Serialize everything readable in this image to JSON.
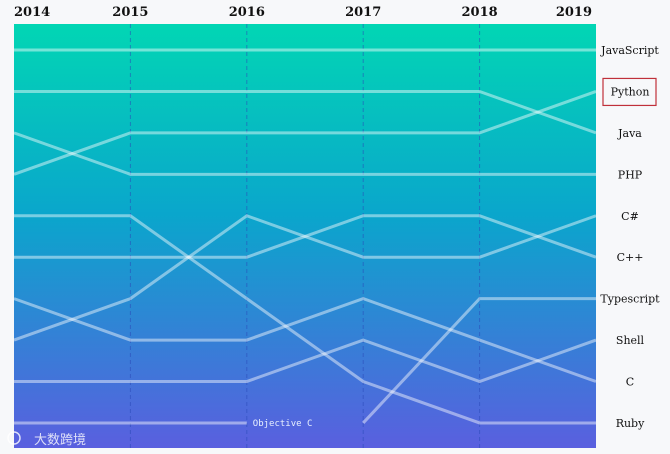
{
  "chart_data": {
    "type": "bump",
    "years": [
      "2014",
      "2015",
      "2016",
      "2017",
      "2018",
      "2019"
    ],
    "rank_range": [
      1,
      10
    ],
    "grid": "vertical dashed lines at each year",
    "series": [
      {
        "name": "JavaScript",
        "ranks": [
          1,
          1,
          1,
          1,
          1,
          1
        ]
      },
      {
        "name": "Python",
        "ranks": [
          4,
          3,
          3,
          3,
          3,
          2
        ],
        "highlighted": true
      },
      {
        "name": "Java",
        "ranks": [
          2,
          2,
          2,
          2,
          2,
          3
        ]
      },
      {
        "name": "PHP",
        "ranks": [
          3,
          4,
          4,
          4,
          4,
          4
        ]
      },
      {
        "name": "C#",
        "ranks": [
          8,
          7,
          5,
          6,
          6,
          5
        ]
      },
      {
        "name": "C++",
        "ranks": [
          6,
          6,
          6,
          5,
          5,
          6
        ]
      },
      {
        "name": "Typescript",
        "ranks": [
          null,
          null,
          null,
          10,
          7,
          7
        ]
      },
      {
        "name": "Shell",
        "ranks": [
          9,
          9,
          9,
          8,
          9,
          8
        ]
      },
      {
        "name": "C",
        "ranks": [
          7,
          8,
          8,
          7,
          8,
          9
        ]
      },
      {
        "name": "Ruby",
        "ranks": [
          5,
          5,
          7,
          9,
          10,
          10
        ]
      },
      {
        "name": "Objective C",
        "ranks": [
          10,
          10,
          10,
          null,
          null,
          null
        ],
        "inline_label": true
      }
    ],
    "colors": {
      "gradient_top": "#02d6b4",
      "gradient_bottom": "#5a5fdf",
      "line": "#ffffff",
      "highlight_box": "#c0303a"
    }
  },
  "watermark": "大数跨境"
}
